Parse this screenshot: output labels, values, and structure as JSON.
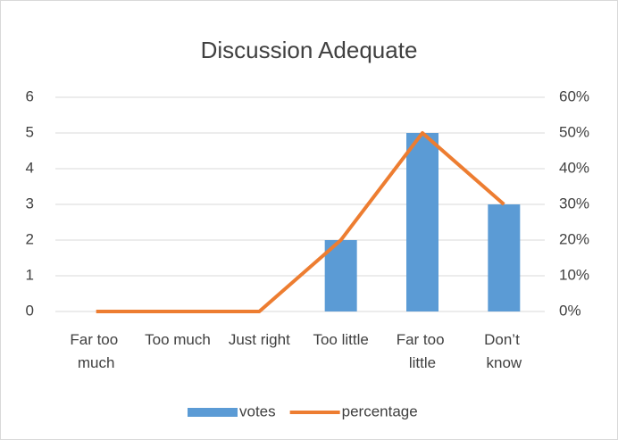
{
  "chart_data": {
    "type": "bar",
    "title": "Discussion Adequate",
    "categories": [
      "Far too much",
      "Too much",
      "Just right",
      "Too little",
      "Far too little",
      "Don’t know"
    ],
    "series": [
      {
        "name": "votes",
        "type": "bar",
        "color": "#5b9bd5",
        "values": [
          0,
          0,
          0,
          2,
          5,
          3
        ]
      },
      {
        "name": "percentage",
        "type": "line",
        "axis": "y2",
        "color": "#ed7d31",
        "values": [
          0,
          0,
          0,
          20,
          50,
          30
        ]
      }
    ],
    "ylim": [
      0,
      6
    ],
    "yticks": [
      0,
      1,
      2,
      3,
      4,
      5,
      6
    ],
    "y2lim": [
      0,
      60
    ],
    "y2ticks": [
      {
        "value": 0,
        "label": "0%"
      },
      {
        "value": 10,
        "label": "10%"
      },
      {
        "value": 20,
        "label": "20%"
      },
      {
        "value": 30,
        "label": "30%"
      },
      {
        "value": 40,
        "label": "40%"
      },
      {
        "value": 50,
        "label": "50%"
      },
      {
        "value": 60,
        "label": "60%"
      }
    ],
    "grid": true,
    "legend": "bottom"
  }
}
